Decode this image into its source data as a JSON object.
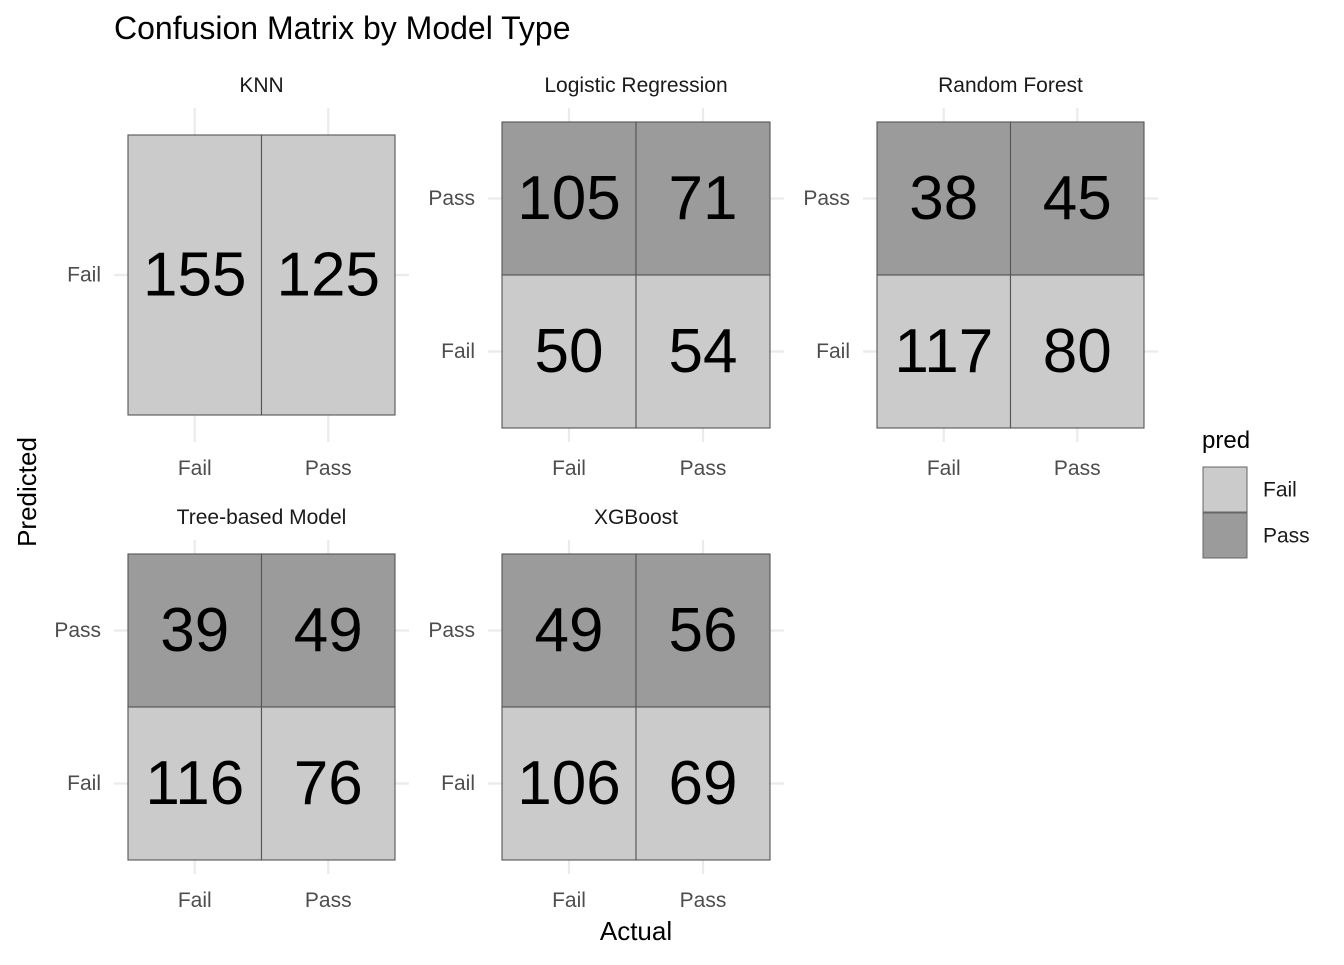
{
  "chart_data": {
    "type": "heatmap",
    "title": "Confusion Matrix by Model Type",
    "xlabel": "Actual",
    "ylabel": "Predicted",
    "x_categories": [
      "Fail",
      "Pass"
    ],
    "legend": {
      "title": "pred",
      "position": "right",
      "items": [
        {
          "label": "Fail",
          "color": "#cbcbcb"
        },
        {
          "label": "Pass",
          "color": "#9b9b9b"
        }
      ]
    },
    "panels": [
      {
        "name": "KNN",
        "y_categories": [
          "Fail"
        ],
        "cells": [
          {
            "actual": "Fail",
            "pred": "Fail",
            "value": 155
          },
          {
            "actual": "Pass",
            "pred": "Fail",
            "value": 125
          }
        ]
      },
      {
        "name": "Logistic Regression",
        "y_categories": [
          "Fail",
          "Pass"
        ],
        "cells": [
          {
            "actual": "Fail",
            "pred": "Pass",
            "value": 105
          },
          {
            "actual": "Pass",
            "pred": "Pass",
            "value": 71
          },
          {
            "actual": "Fail",
            "pred": "Fail",
            "value": 50
          },
          {
            "actual": "Pass",
            "pred": "Fail",
            "value": 54
          }
        ]
      },
      {
        "name": "Random Forest",
        "y_categories": [
          "Fail",
          "Pass"
        ],
        "cells": [
          {
            "actual": "Fail",
            "pred": "Pass",
            "value": 38
          },
          {
            "actual": "Pass",
            "pred": "Pass",
            "value": 45
          },
          {
            "actual": "Fail",
            "pred": "Fail",
            "value": 117
          },
          {
            "actual": "Pass",
            "pred": "Fail",
            "value": 80
          }
        ]
      },
      {
        "name": "Tree-based Model",
        "y_categories": [
          "Fail",
          "Pass"
        ],
        "cells": [
          {
            "actual": "Fail",
            "pred": "Pass",
            "value": 39
          },
          {
            "actual": "Pass",
            "pred": "Pass",
            "value": 49
          },
          {
            "actual": "Fail",
            "pred": "Fail",
            "value": 116
          },
          {
            "actual": "Pass",
            "pred": "Fail",
            "value": 76
          }
        ]
      },
      {
        "name": "XGBoost",
        "y_categories": [
          "Fail",
          "Pass"
        ],
        "cells": [
          {
            "actual": "Fail",
            "pred": "Pass",
            "value": 49
          },
          {
            "actual": "Pass",
            "pred": "Pass",
            "value": 56
          },
          {
            "actual": "Fail",
            "pred": "Fail",
            "value": 106
          },
          {
            "actual": "Pass",
            "pred": "Fail",
            "value": 69
          }
        ]
      }
    ]
  }
}
